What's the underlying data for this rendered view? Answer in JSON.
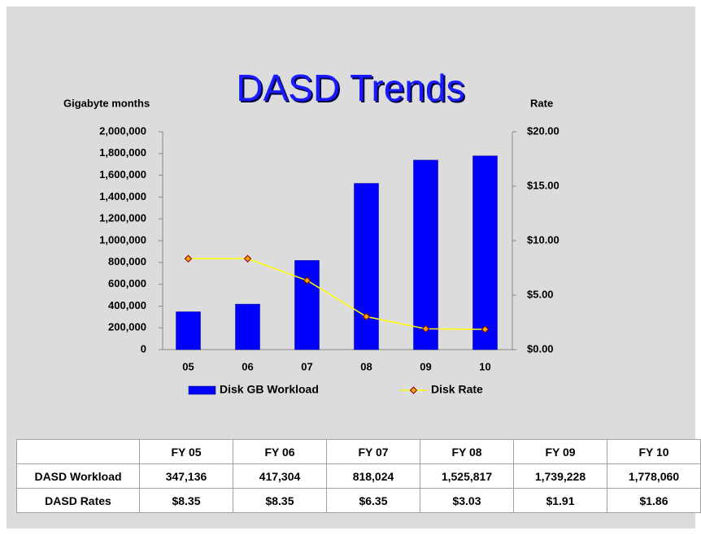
{
  "chart_data": {
    "type": "bar",
    "title": "DASD Trends",
    "y_label": "Gigabyte months",
    "y2_label": "Rate",
    "categories": [
      "05",
      "06",
      "07",
      "08",
      "09",
      "10"
    ],
    "series": [
      {
        "name": "Disk GB Workload",
        "color": "#0000ff",
        "values": [
          347136,
          417304,
          818024,
          1525817,
          1739228,
          1778060
        ]
      },
      {
        "name": "Disk Rate",
        "color": "#ffff00",
        "type": "line",
        "axis": "y2",
        "values": [
          8.35,
          8.35,
          6.35,
          3.03,
          1.91,
          1.86
        ]
      }
    ],
    "ylim": [
      0,
      2000000
    ],
    "yticks": [
      0,
      {
        "value": 200000,
        "label": "200,000"
      },
      {
        "value": 400000,
        "label": "400,000"
      },
      {
        "value": 600000,
        "label": "600,000"
      },
      {
        "value": 800000,
        "label": "800,000"
      },
      {
        "value": 1000000,
        "label": "1,000,000"
      },
      {
        "value": 1200000,
        "label": "1,200,000"
      },
      {
        "value": 1400000,
        "label": "1,400,000"
      },
      {
        "value": 1600000,
        "label": "1,600,000"
      },
      {
        "value": 1800000,
        "label": "1,800,000"
      },
      {
        "value": 2000000,
        "label": "2,000,000"
      }
    ],
    "y2lim": [
      0,
      20
    ],
    "y2ticks": [
      {
        "value": 0,
        "label": "$0.00"
      },
      {
        "value": 5,
        "label": "$5.00"
      },
      {
        "value": 10,
        "label": "$10.00"
      },
      {
        "value": 15,
        "label": "$15.00"
      },
      {
        "value": 20,
        "label": "$20.00"
      }
    ],
    "legend": "bottom"
  },
  "table": {
    "header": [
      "FY 05",
      "FY 06",
      "FY 07",
      "FY 08",
      "FY 09",
      "FY 10"
    ],
    "rows": [
      {
        "label": "DASD Workload",
        "cells": [
          "347,136",
          "417,304",
          "818,024",
          "1,525,817",
          "1,739,228",
          "1,778,060"
        ]
      },
      {
        "label": "DASD Rates",
        "cells": [
          "$8.35",
          "$8.35",
          "$6.35",
          "$3.03",
          "$1.91",
          "$1.86"
        ]
      }
    ]
  }
}
